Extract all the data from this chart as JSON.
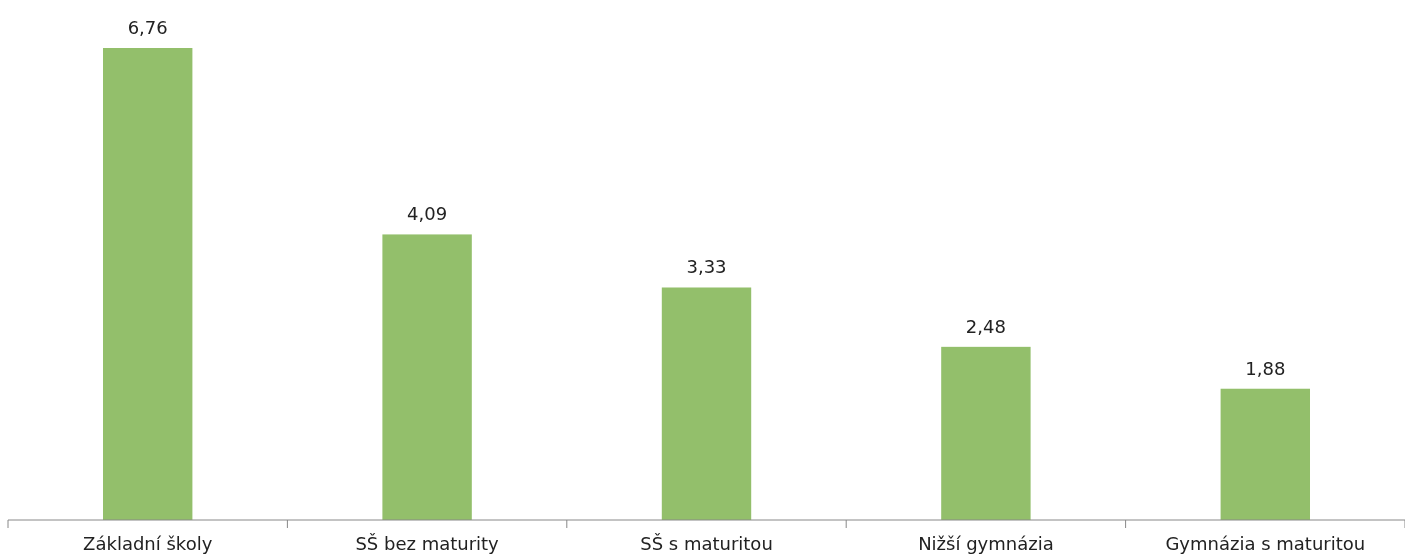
{
  "chart_data": {
    "type": "bar",
    "categories": [
      "Základní školy",
      "SŠ bez maturity",
      "SŠ s maturitou",
      "Nižší gymnázia",
      "Gymnázia s maturitou"
    ],
    "values": [
      6.76,
      4.09,
      3.33,
      2.48,
      1.88
    ],
    "value_labels": [
      "6,76",
      "4,09",
      "3,33",
      "2,48",
      "1,88"
    ],
    "color": "#93bf6b"
  }
}
